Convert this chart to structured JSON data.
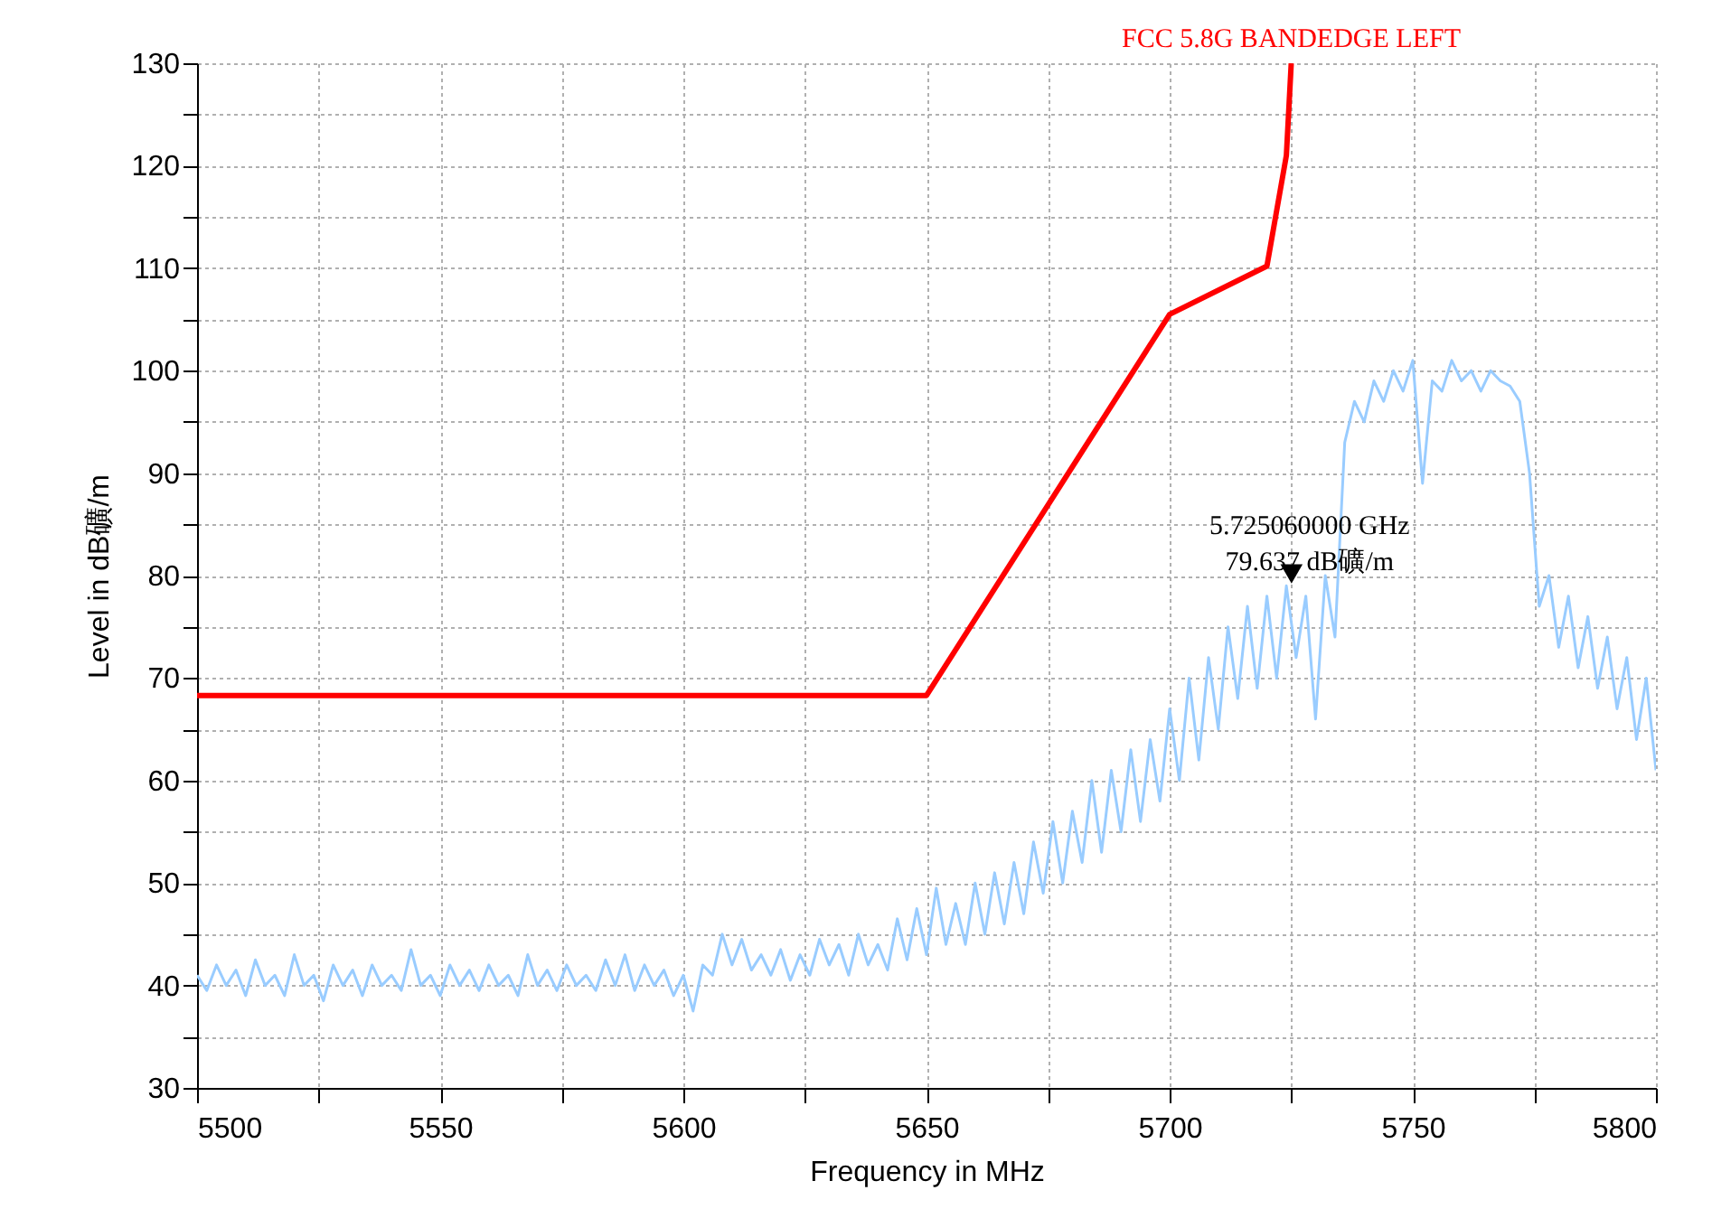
{
  "chart_data": {
    "type": "line",
    "xlabel": "Frequency in MHz",
    "ylabel": "Level in dB礦/m",
    "xlim": [
      5500,
      5800
    ],
    "ylim": [
      30,
      130
    ],
    "xticks": [
      5500,
      {
        "value": 5525,
        "label": null
      },
      5550,
      {
        "value": 5575,
        "label": null
      },
      5600,
      {
        "value": 5625,
        "label": null
      },
      5650,
      {
        "value": 5675,
        "label": null
      },
      5700,
      {
        "value": 5725,
        "label": null
      },
      5750,
      {
        "value": 5775,
        "label": null
      },
      5800
    ],
    "yticks": [
      30,
      {
        "value": 35,
        "label": null
      },
      40,
      {
        "value": 45,
        "label": null
      },
      50,
      {
        "value": 55,
        "label": null
      },
      60,
      {
        "value": 65,
        "label": null
      },
      70,
      {
        "value": 75,
        "label": null
      },
      80,
      {
        "value": 85,
        "label": null
      },
      90,
      {
        "value": 95,
        "label": null
      },
      100,
      {
        "value": 105,
        "label": null
      },
      110,
      {
        "value": 115,
        "label": null
      },
      120,
      {
        "value": 125,
        "label": null
      },
      130
    ],
    "grid": true,
    "marker": "none",
    "line_style": "solid",
    "series": [
      {
        "color": "#99ccff",
        "x": [
          5500,
          5502,
          5504,
          5506,
          5508,
          5510,
          5512,
          5514,
          5516,
          5518,
          5520,
          5522,
          5524,
          5526,
          5528,
          5530,
          5532,
          5534,
          5536,
          5538,
          5540,
          5542,
          5544,
          5546,
          5548,
          5550,
          5552,
          5554,
          5556,
          5558,
          5560,
          5562,
          5564,
          5566,
          5568,
          5570,
          5572,
          5574,
          5576,
          5578,
          5580,
          5582,
          5584,
          5586,
          5588,
          5590,
          5592,
          5594,
          5596,
          5598,
          5600,
          5602,
          5604,
          5606,
          5608,
          5610,
          5612,
          5614,
          5616,
          5618,
          5620,
          5622,
          5624,
          5626,
          5628,
          5630,
          5632,
          5634,
          5636,
          5638,
          5640,
          5642,
          5644,
          5646,
          5648,
          5650,
          5652,
          5654,
          5656,
          5658,
          5660,
          5662,
          5664,
          5666,
          5668,
          5670,
          5672,
          5674,
          5676,
          5678,
          5680,
          5682,
          5684,
          5686,
          5688,
          5690,
          5692,
          5694,
          5696,
          5698,
          5700,
          5702,
          5704,
          5706,
          5708,
          5710,
          5712,
          5714,
          5716,
          5718,
          5720,
          5722,
          5724,
          5726,
          5728,
          5730,
          5732,
          5734,
          5736,
          5738,
          5740,
          5742,
          5744,
          5746,
          5748,
          5750,
          5752,
          5754,
          5756,
          5758,
          5760,
          5762,
          5764,
          5766,
          5768,
          5770,
          5772,
          5774,
          5776,
          5778,
          5780,
          5782,
          5784,
          5786,
          5788,
          5790,
          5792,
          5794,
          5796,
          5798,
          5800
        ],
        "values": [
          41,
          39.5,
          42,
          40,
          41.5,
          39,
          42.5,
          40,
          41,
          39,
          43,
          40,
          41,
          38.5,
          42,
          40,
          41.5,
          39,
          42,
          40,
          41,
          39.5,
          43.5,
          40,
          41,
          39,
          42,
          40,
          41.5,
          39.5,
          42,
          40,
          41,
          39,
          43,
          40,
          41.5,
          39.5,
          42,
          40,
          41,
          39.5,
          42.5,
          40,
          43,
          39.5,
          42,
          40,
          41.5,
          39,
          41,
          37.5,
          42,
          41,
          45,
          42,
          44.5,
          41.5,
          43,
          41,
          43.5,
          40.5,
          43,
          41,
          44.5,
          42,
          44,
          41,
          45,
          42,
          44,
          41.5,
          46.5,
          42.5,
          47.5,
          43,
          49.5,
          44,
          48,
          44,
          50,
          45,
          51,
          46,
          52,
          47,
          54,
          49,
          56,
          50,
          57,
          52,
          60,
          53,
          61,
          55,
          63,
          56,
          64,
          58,
          67,
          60,
          70,
          62,
          72,
          65,
          75,
          68,
          77,
          69,
          78,
          70,
          79,
          72,
          78,
          66,
          80,
          74,
          93,
          97,
          95,
          99,
          97,
          100,
          98,
          101,
          89,
          99,
          98,
          101,
          99,
          100,
          98,
          100,
          99,
          98.5,
          97,
          90,
          77,
          80,
          73,
          78,
          71,
          76,
          69,
          74,
          67,
          72,
          64,
          70,
          61
        ]
      },
      {
        "name": "FCC 5.8G BANDEDGE LEFT",
        "color": "#ff0000",
        "x": [
          5500,
          5650,
          5700,
          5720,
          5724,
          5725
        ],
        "values": [
          68.3,
          68.3,
          105.5,
          110.2,
          121,
          130
        ]
      }
    ],
    "annotations": [
      {
        "text": "5.725060000 GHz\n79.637 dB礦/m",
        "x": 5725.06,
        "y": 79.637
      }
    ]
  }
}
